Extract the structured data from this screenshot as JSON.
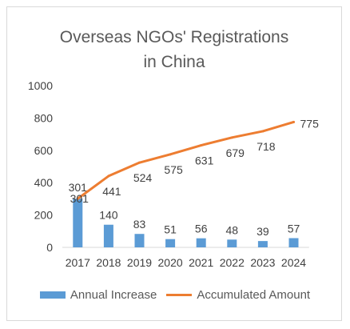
{
  "chart_data": {
    "type": "bar+line",
    "title_lines": [
      "Overseas NGOs' Registrations",
      "in China"
    ],
    "categories": [
      "2017",
      "2018",
      "2019",
      "2020",
      "2021",
      "2022",
      "2023",
      "2024"
    ],
    "series": [
      {
        "name": "Annual Increase",
        "type": "bar",
        "color": "#5b9bd5",
        "values": [
          301,
          140,
          83,
          51,
          56,
          48,
          39,
          57
        ]
      },
      {
        "name": "Accumulated Amount",
        "type": "line",
        "color": "#ed7d31",
        "values": [
          301,
          441,
          524,
          575,
          631,
          679,
          718,
          775
        ]
      }
    ],
    "yticks": [
      0,
      200,
      400,
      600,
      800,
      1000
    ],
    "ylim": [
      0,
      1000
    ],
    "grid": false,
    "legend_position": "bottom"
  }
}
